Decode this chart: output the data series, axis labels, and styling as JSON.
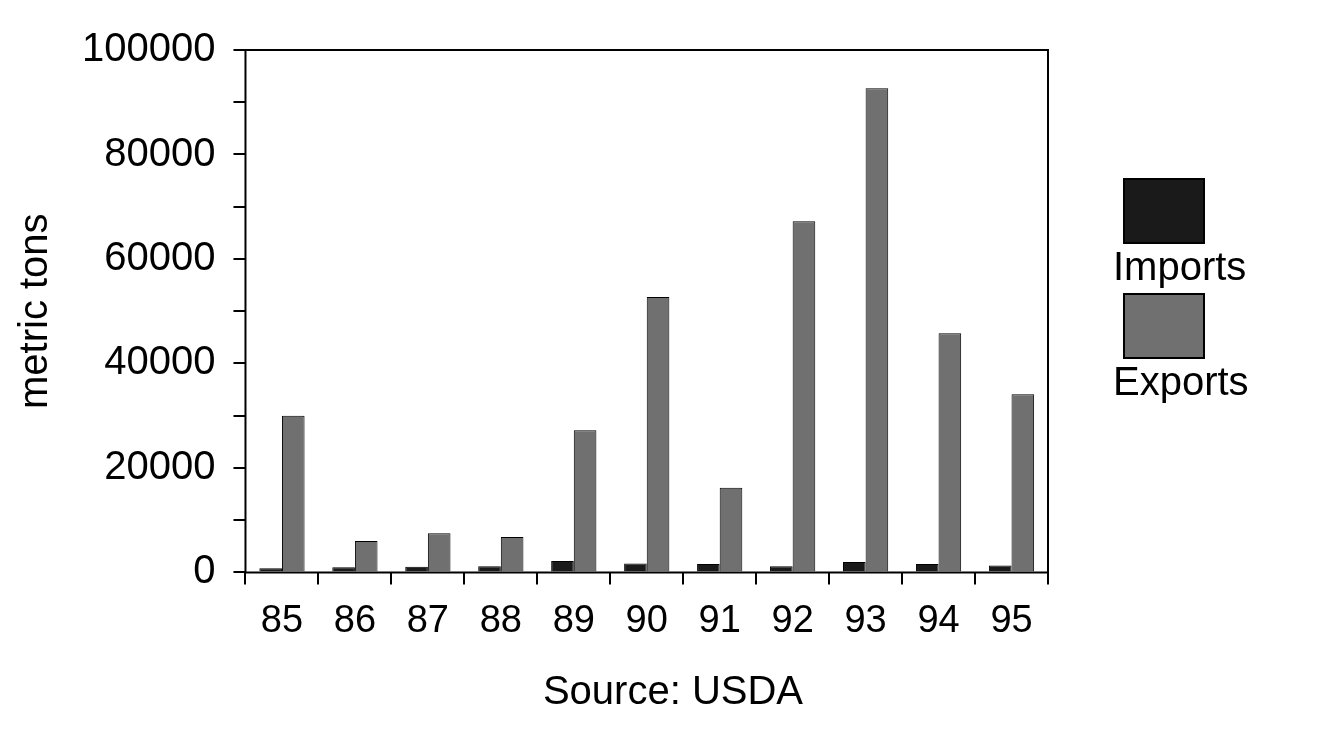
{
  "chart_data": {
    "type": "bar",
    "ylabel": "metric tons",
    "categories": [
      "85",
      "86",
      "87",
      "88",
      "89",
      "90",
      "91",
      "92",
      "93",
      "94",
      "95"
    ],
    "series": [
      {
        "name": "Imports",
        "color": "#1a1a1a",
        "values": [
          800,
          1000,
          1100,
          1200,
          2200,
          1700,
          1600,
          1200,
          2000,
          1600,
          1300
        ]
      },
      {
        "name": "Exports",
        "color": "#707070",
        "values": [
          30000,
          6000,
          7500,
          6800,
          27200,
          52700,
          16200,
          67200,
          92700,
          45800,
          34100
        ]
      }
    ],
    "ylim": [
      0,
      100000
    ],
    "yticks": [
      0,
      {
        "value": 10000,
        "label": null
      },
      20000,
      {
        "value": 30000,
        "label": null
      },
      40000,
      {
        "value": 50000,
        "label": null
      },
      60000,
      {
        "value": 70000,
        "label": null
      },
      80000,
      {
        "value": 90000,
        "label": null
      },
      100000
    ],
    "grid": false,
    "legend": "right",
    "annotations": [
      "Source: USDA"
    ]
  }
}
